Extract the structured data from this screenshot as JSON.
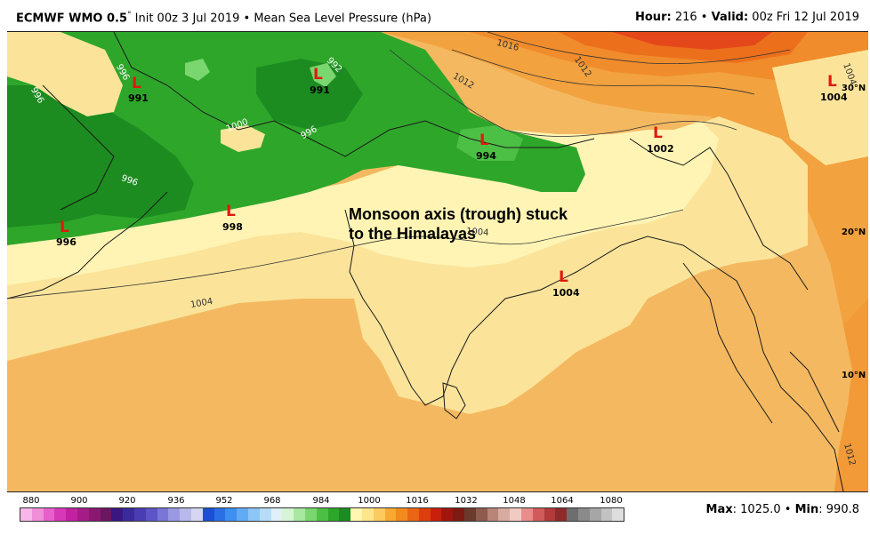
{
  "header": {
    "model": "ECMWF WMO 0.5",
    "degree": "°",
    "init": "Init 00z 3 Jul 2019",
    "sep": "•",
    "field": "Mean Sea Level Pressure (hPa)",
    "hour_label": "Hour:",
    "hour_value": "216",
    "valid_label": "Valid:",
    "valid_value": "00z Fri 12 Jul 2019"
  },
  "annotation": {
    "line1": "Monsoon axis (trough) stuck",
    "line2": "to the Himalayas"
  },
  "lows": [
    {
      "symbol": "L",
      "value": "991"
    },
    {
      "symbol": "L",
      "value": "991"
    },
    {
      "symbol": "L",
      "value": "994"
    },
    {
      "symbol": "L",
      "value": "1002"
    },
    {
      "symbol": "L",
      "value": "1004"
    },
    {
      "symbol": "L",
      "value": "996"
    },
    {
      "symbol": "L",
      "value": "998"
    },
    {
      "symbol": "L",
      "value": "1004"
    }
  ],
  "contour_labels": [
    "996",
    "996",
    "992",
    "1000",
    "996",
    "996",
    "1004",
    "1004",
    "1012",
    "1016",
    "1012",
    "1004",
    "1012"
  ],
  "latitude_labels": [
    "30°N",
    "20°N",
    "10°N"
  ],
  "colorbar": {
    "ticks": [
      "880",
      "900",
      "920",
      "936",
      "952",
      "968",
      "984",
      "1000",
      "1016",
      "1032",
      "1048",
      "1064",
      "1080"
    ],
    "colors": [
      "#f7b7e8",
      "#f08ed9",
      "#e85fcb",
      "#d838b7",
      "#c222a0",
      "#a61c87",
      "#8a1870",
      "#6c1560",
      "#3a1680",
      "#3b2a9c",
      "#4a3db3",
      "#5d55c7",
      "#7a76d6",
      "#9a98e0",
      "#b8b8ea",
      "#d6d6f3",
      "#1c4fd6",
      "#2a6fe6",
      "#3d8ff0",
      "#62abf4",
      "#8cc6f6",
      "#b6dcf8",
      "#dff0f9",
      "#d5f5d5",
      "#a8e8a0",
      "#7ad66f",
      "#4cc044",
      "#2ea62a",
      "#1c8c20",
      "#fff6b0",
      "#fde58a",
      "#fbcb5f",
      "#f7a932",
      "#f28a1e",
      "#ea6514",
      "#de3e0e",
      "#c8200a",
      "#a1160c",
      "#7e1a12",
      "#6b3a2e",
      "#8e5b4f",
      "#b98579",
      "#d7aba0",
      "#f0cbc2",
      "#e88c8c",
      "#d15a5a",
      "#b33a3a",
      "#8f2a2a",
      "#6e6e6e",
      "#8a8a8a",
      "#a6a6a6",
      "#c2c2c2",
      "#dedede"
    ]
  },
  "stats": {
    "max_label": "Max",
    "max_value": "1025.0",
    "min_label": "Min",
    "min_value": "990.8"
  }
}
